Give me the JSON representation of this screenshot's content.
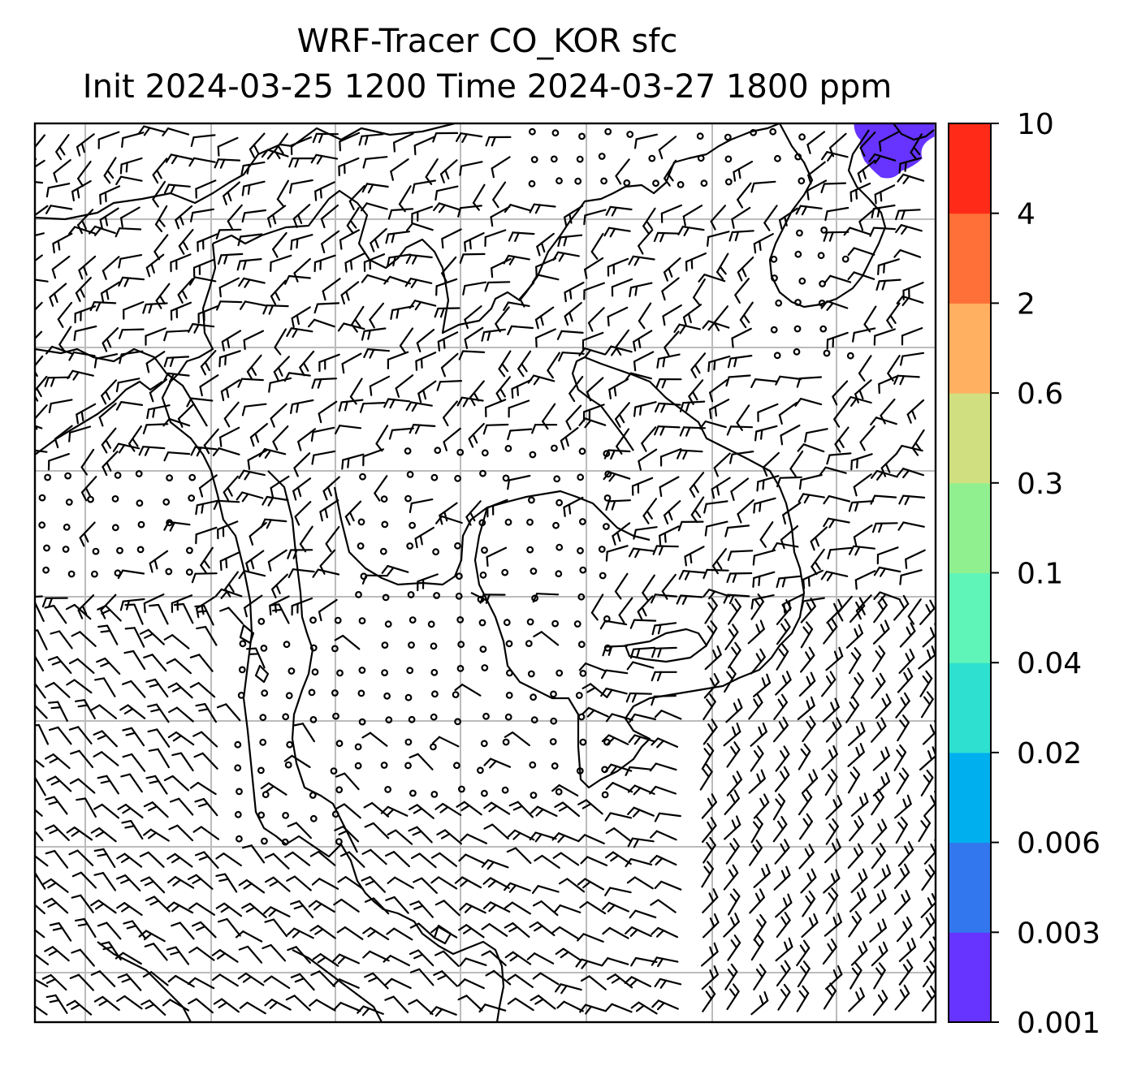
{
  "title": {
    "line1": "WRF-Tracer CO_KOR sfc",
    "line2": "Init 2024-03-25 1200 Time 2024-03-27 1800 ppm"
  },
  "colorbar": {
    "levels": [
      "0.001",
      "0.003",
      "0.006",
      "0.02",
      "0.04",
      "0.1",
      "0.3",
      "0.6",
      "2",
      "4",
      "10"
    ],
    "colors": [
      "#6633ff",
      "#3377ee",
      "#00b0ee",
      "#2ee0d0",
      "#60f5b8",
      "#90f090",
      "#d0e080",
      "#ffb060",
      "#ff7038",
      "#ff2a18"
    ]
  },
  "map": {
    "plume_color": "#6633ff",
    "grid_color": "#bbbbbb",
    "coast_color": "#000000",
    "barb_color": "#000000"
  }
}
